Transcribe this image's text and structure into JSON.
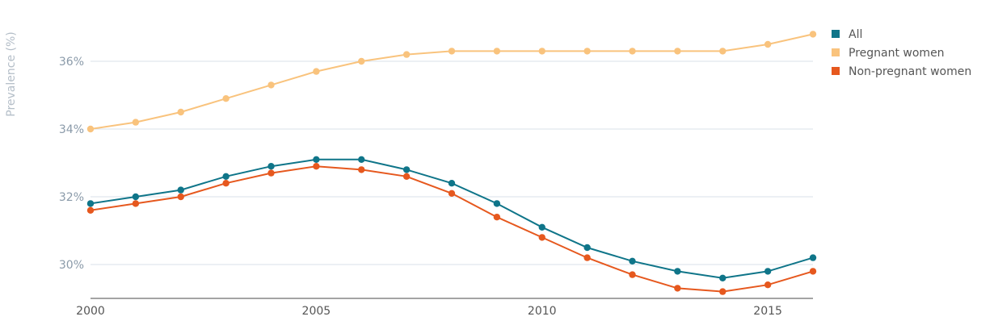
{
  "chart_data": {
    "type": "line",
    "ylabel": "Prevalence (%)",
    "x": [
      2000,
      2001,
      2002,
      2003,
      2004,
      2005,
      2006,
      2007,
      2008,
      2009,
      2010,
      2011,
      2012,
      2013,
      2014,
      2015,
      2016
    ],
    "xlim": [
      2000,
      2016
    ],
    "ylim": [
      29.0,
      37.0
    ],
    "x_ticks": [
      2000,
      2005,
      2010,
      2015
    ],
    "x_tick_labels": [
      "2000",
      "2005",
      "2010",
      "2015"
    ],
    "y_ticks": [
      30,
      32,
      34,
      36
    ],
    "y_tick_labels": [
      "30%",
      "32%",
      "34%",
      "36%"
    ],
    "grid": "horizontal",
    "legend_position": "top-right",
    "series": [
      {
        "name": "All",
        "color": "#0f7589",
        "values": [
          31.8,
          32.0,
          32.2,
          32.6,
          32.9,
          33.1,
          33.1,
          32.8,
          32.4,
          31.8,
          31.1,
          30.5,
          30.1,
          29.8,
          29.6,
          29.8,
          30.2
        ]
      },
      {
        "name": "Pregnant women",
        "color": "#f9c37d",
        "values": [
          34.0,
          34.2,
          34.5,
          34.9,
          35.3,
          35.7,
          36.0,
          36.2,
          36.3,
          36.3,
          36.3,
          36.3,
          36.3,
          36.3,
          36.3,
          36.5,
          36.8
        ]
      },
      {
        "name": "Non-pregnant women",
        "color": "#e6581e",
        "values": [
          31.6,
          31.8,
          32.0,
          32.4,
          32.7,
          32.9,
          32.8,
          32.6,
          32.1,
          31.4,
          30.8,
          30.2,
          29.7,
          29.3,
          29.2,
          29.4,
          29.8
        ]
      }
    ]
  }
}
